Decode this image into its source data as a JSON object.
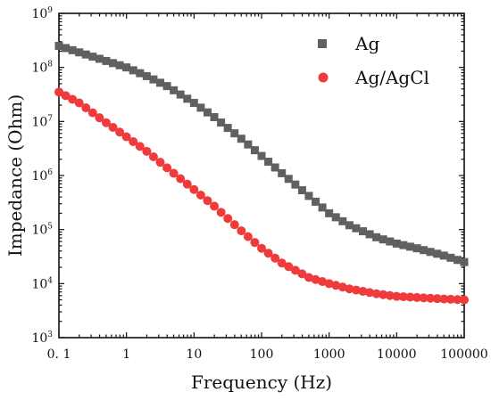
{
  "chart_data": {
    "type": "scatter",
    "title": "",
    "xlabel": "Frequency (Hz)",
    "ylabel": "Impedance (Ohm)",
    "x_scale": "log",
    "y_scale": "log",
    "xlim": [
      0.1,
      100000
    ],
    "ylim": [
      1000,
      1000000000
    ],
    "x_ticks": [
      0.1,
      1,
      10,
      100,
      1000,
      10000,
      100000
    ],
    "x_tick_labels": [
      "0. 1",
      "1",
      "10",
      "100",
      "1000",
      "10000",
      "100000"
    ],
    "y_ticks": [
      {
        "value": 1000,
        "base": "10",
        "exp": "3"
      },
      {
        "value": 10000,
        "base": "10",
        "exp": "4"
      },
      {
        "value": 100000,
        "base": "10",
        "exp": "5"
      },
      {
        "value": 1000000,
        "base": "10",
        "exp": "6"
      },
      {
        "value": 10000000,
        "base": "10",
        "exp": "7"
      },
      {
        "value": 100000000,
        "base": "10",
        "exp": "8"
      },
      {
        "value": 1000000000,
        "base": "10",
        "exp": "9"
      }
    ],
    "grid": false,
    "legend_position": "top-right",
    "series": [
      {
        "name": "Ag",
        "marker": "square",
        "color": "#606060",
        "points": [
          [
            0.1,
            250000000
          ],
          [
            1,
            100000000
          ],
          [
            2,
            69000000
          ],
          [
            4,
            45000000
          ],
          [
            10,
            22000000
          ],
          [
            20,
            12000000
          ],
          [
            50,
            4800000
          ],
          [
            100,
            2300000
          ],
          [
            200,
            1100000
          ],
          [
            500,
            420000
          ],
          [
            1000,
            200000
          ],
          [
            2000,
            120000
          ],
          [
            5000,
            72000
          ],
          [
            10000,
            55000
          ],
          [
            20000,
            45000
          ],
          [
            50000,
            33000
          ],
          [
            100000,
            25000
          ]
        ]
      },
      {
        "name": "Ag/AgCl",
        "marker": "circle",
        "color": "#ef3b3b",
        "points": [
          [
            0.1,
            35000000
          ],
          [
            0.2,
            22000000
          ],
          [
            0.5,
            9500000
          ],
          [
            1,
            5200000
          ],
          [
            2,
            2800000
          ],
          [
            5,
            1100000
          ],
          [
            10,
            550000
          ],
          [
            20,
            270000
          ],
          [
            50,
            95000
          ],
          [
            100,
            45000
          ],
          [
            200,
            24000
          ],
          [
            500,
            13000
          ],
          [
            1000,
            10000
          ],
          [
            2000,
            8000
          ],
          [
            5000,
            6500
          ],
          [
            10000,
            5800
          ],
          [
            50000,
            5200
          ],
          [
            100000,
            5000
          ]
        ]
      }
    ]
  }
}
